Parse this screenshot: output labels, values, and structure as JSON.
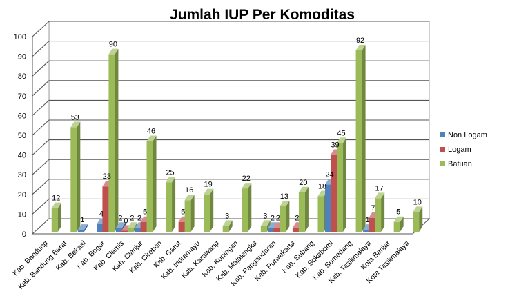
{
  "chart_data": {
    "type": "bar",
    "title": "Jumlah IUP  Per Komoditas",
    "ylim": [
      0,
      100
    ],
    "yticks": [
      0,
      10,
      20,
      30,
      40,
      50,
      60,
      70,
      80,
      90,
      100
    ],
    "grid": true,
    "legend_position": "right",
    "categories": [
      "Kab. Bandung",
      "Kab. Bandung Barat",
      "Kab. Bekasi",
      "Kab. Bogor",
      "Kab. Ciamis",
      "Kab. Cianjur",
      "Kab. Cirebon",
      "Kab. Garut",
      "Kab. Indramayu",
      "Kab. Karawang",
      "Kab. Kuningan",
      "Kab. Majalengka",
      "Kab. Pangandaran",
      "Kab. Purwakarta",
      "Kab. Subang",
      "Kab. Sukabumi",
      "Kab. Sumedang",
      "Kab. Tasikmalaya",
      "Kota Banjar",
      "Kota Tasikmalaya"
    ],
    "series": [
      {
        "name": "Non Logam",
        "color": "#4F81BD",
        "values": [
          null,
          null,
          1,
          4,
          2,
          2,
          null,
          null,
          null,
          null,
          null,
          null,
          2,
          null,
          null,
          24,
          null,
          1,
          null,
          null
        ]
      },
      {
        "name": "Logam",
        "color": "#C0504D",
        "values": [
          null,
          null,
          null,
          23,
          0,
          5,
          null,
          5,
          null,
          null,
          null,
          null,
          2,
          2,
          null,
          39,
          null,
          7,
          null,
          null
        ]
      },
      {
        "name": "Batuan",
        "color": "#9BBB59",
        "values": [
          12,
          53,
          null,
          90,
          2,
          46,
          25,
          16,
          19,
          3,
          22,
          3,
          13,
          20,
          18,
          45,
          92,
          17,
          5,
          10
        ]
      }
    ]
  }
}
